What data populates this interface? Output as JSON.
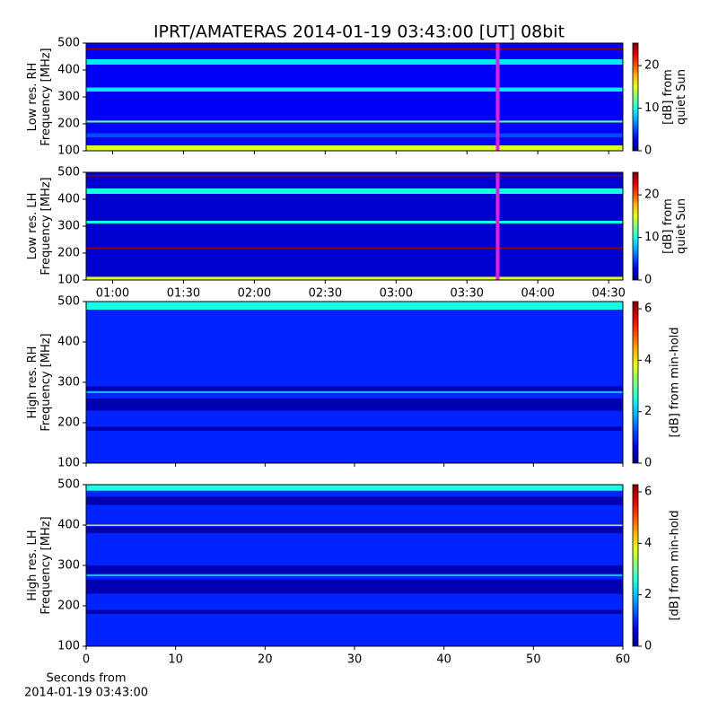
{
  "title": "IPRT/AMATERAS 2014-01-19 03:43:00 [UT]   08bit",
  "chart_data": [
    {
      "type": "spectrogram",
      "ylabel": [
        "Low res. RH",
        "Frequency [MHz]"
      ],
      "colormap": "jet",
      "ylim": [
        100,
        500
      ],
      "yticks": [
        100,
        200,
        300,
        400,
        500
      ],
      "xlim": [
        48.8,
        276
      ],
      "xticks": [
        {
          "value": 60,
          "label": "01:00"
        },
        {
          "value": 90,
          "label": "01:30"
        },
        {
          "value": 120,
          "label": "02:00"
        },
        {
          "value": 150,
          "label": "02:30"
        },
        {
          "value": 180,
          "label": "03:00"
        },
        {
          "value": 210,
          "label": "03:30"
        },
        {
          "value": 240,
          "label": "04:00"
        },
        {
          "value": 270,
          "label": "04:30"
        }
      ],
      "xtick_labels": false,
      "cursor": {
        "value": 223,
        "color": "#e020e0"
      },
      "background": 3,
      "bands": [
        {
          "range": [
            100,
            120
          ],
          "value": 15
        },
        {
          "range": [
            150,
            165
          ],
          "value": 5
        },
        {
          "range": [
            205,
            212
          ],
          "value": 12
        },
        {
          "range": [
            320,
            335
          ],
          "value": 9
        },
        {
          "range": [
            420,
            440
          ],
          "value": 9
        },
        {
          "range": [
            475,
            480
          ],
          "value": 25
        }
      ],
      "clim": [
        0,
        25.3
      ],
      "cticks": [
        0,
        10,
        20
      ],
      "clabel": [
        "[dB] from",
        "quiet Sun"
      ]
    },
    {
      "type": "spectrogram",
      "ylabel": [
        "Low res. LH",
        "Frequency [MHz]"
      ],
      "colormap": "jet",
      "ylim": [
        100,
        500
      ],
      "yticks": [
        100,
        200,
        300,
        400,
        500
      ],
      "xlim": [
        48.8,
        276
      ],
      "xticks": [
        {
          "value": 60,
          "label": "01:00"
        },
        {
          "value": 90,
          "label": "01:30"
        },
        {
          "value": 120,
          "label": "02:00"
        },
        {
          "value": 150,
          "label": "02:30"
        },
        {
          "value": 180,
          "label": "03:00"
        },
        {
          "value": 210,
          "label": "03:30"
        },
        {
          "value": 240,
          "label": "04:00"
        },
        {
          "value": 270,
          "label": "04:30"
        }
      ],
      "xtick_labels": true,
      "cursor": {
        "value": 223,
        "color": "#e020e0"
      },
      "background": 2,
      "bands": [
        {
          "range": [
            100,
            112
          ],
          "value": 15
        },
        {
          "range": [
            215,
            222
          ],
          "value": 25
        },
        {
          "range": [
            310,
            320
          ],
          "value": 10
        },
        {
          "range": [
            420,
            440
          ],
          "value": 10
        },
        {
          "range": [
            485,
            490
          ],
          "value": 25
        }
      ],
      "clim": [
        0,
        25.3
      ],
      "cticks": [
        0,
        10,
        20
      ],
      "clabel": [
        "[dB] from",
        "quiet Sun"
      ]
    },
    {
      "type": "spectrogram",
      "ylabel": [
        "High res. RH",
        "Frequency [MHz]"
      ],
      "colormap": "jet",
      "ylim": [
        100,
        500
      ],
      "yticks": [
        100,
        200,
        300,
        400,
        500
      ],
      "xlim": [
        0,
        60
      ],
      "xticks": [
        0,
        10,
        20,
        30,
        40,
        50,
        60
      ],
      "xtick_labels": false,
      "background": 1,
      "bands": [
        {
          "range": [
            180,
            190
          ],
          "value": 0.3
        },
        {
          "range": [
            230,
            260
          ],
          "value": 0.3
        },
        {
          "range": [
            274,
            277
          ],
          "value": 2.5
        },
        {
          "range": [
            280,
            290
          ],
          "value": 0.3
        },
        {
          "range": [
            480,
            500
          ],
          "value": 2.5
        }
      ],
      "clim": [
        0,
        6.28
      ],
      "cticks": [
        0,
        2,
        4,
        6
      ],
      "clabel": [
        "[dB] from min-hold"
      ]
    },
    {
      "type": "spectrogram",
      "ylabel": [
        "High res. LH",
        "Frequency [MHz]"
      ],
      "colormap": "jet",
      "ylim": [
        100,
        500
      ],
      "yticks": [
        100,
        200,
        300,
        400,
        500
      ],
      "xlim": [
        0,
        60
      ],
      "xticks": [
        0,
        10,
        20,
        30,
        40,
        50,
        60
      ],
      "xtick_labels": true,
      "xlabel": [
        "Seconds from",
        "2014-01-19 03:43:00"
      ],
      "background": 1,
      "bands": [
        {
          "range": [
            180,
            190
          ],
          "value": 0.3
        },
        {
          "range": [
            230,
            265
          ],
          "value": 0.3
        },
        {
          "range": [
            274,
            277
          ],
          "value": 2.5
        },
        {
          "range": [
            280,
            300
          ],
          "value": 0.3
        },
        {
          "range": [
            380,
            395
          ],
          "value": 0.3
        },
        {
          "range": [
            398,
            401
          ],
          "value": 4
        },
        {
          "range": [
            450,
            470
          ],
          "value": 0.3
        },
        {
          "range": [
            485,
            500
          ],
          "value": 2.5
        }
      ],
      "clim": [
        0,
        6.28
      ],
      "cticks": [
        0,
        2,
        4,
        6
      ],
      "clabel": [
        "[dB] from min-hold"
      ]
    }
  ]
}
